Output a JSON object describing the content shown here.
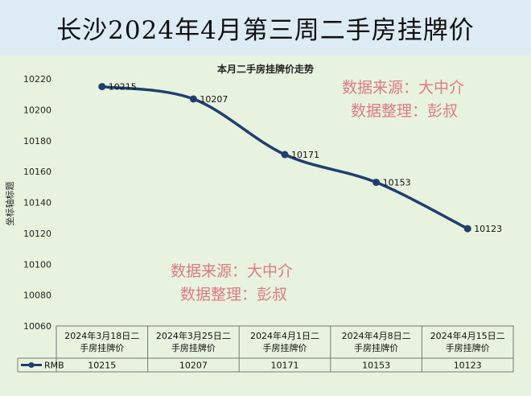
{
  "banner": {
    "title": "长沙2024年4月第三周二手房挂牌价"
  },
  "watermarks": {
    "top_line1": "数据来源：大中介",
    "top_line2": "数据整理：彭叔",
    "mid_line1": "数据来源：大中介",
    "mid_line2": "数据整理：彭叔"
  },
  "chart_data": {
    "type": "line",
    "title": "本月二手房挂牌价走势",
    "ylabel": "坐标轴标题",
    "xlabel": "",
    "ylim": [
      10060,
      10220
    ],
    "y_ticks": [
      10060,
      10080,
      10100,
      10120,
      10140,
      10160,
      10180,
      10200,
      10220
    ],
    "grid": false,
    "smooth": true,
    "categories": [
      "2024年3月18日二手房挂牌价",
      "2024年3月25日二手房挂牌价",
      "2024年4月1日二手房挂牌价",
      "2024年4月8日二手房挂牌价",
      "2024年4月15日二手房挂牌价"
    ],
    "series": [
      {
        "name": "RMB",
        "values": [
          10215,
          10207,
          10171,
          10153,
          10123
        ],
        "color": "#1f3f6e"
      }
    ],
    "legend_placement": "data-table"
  }
}
